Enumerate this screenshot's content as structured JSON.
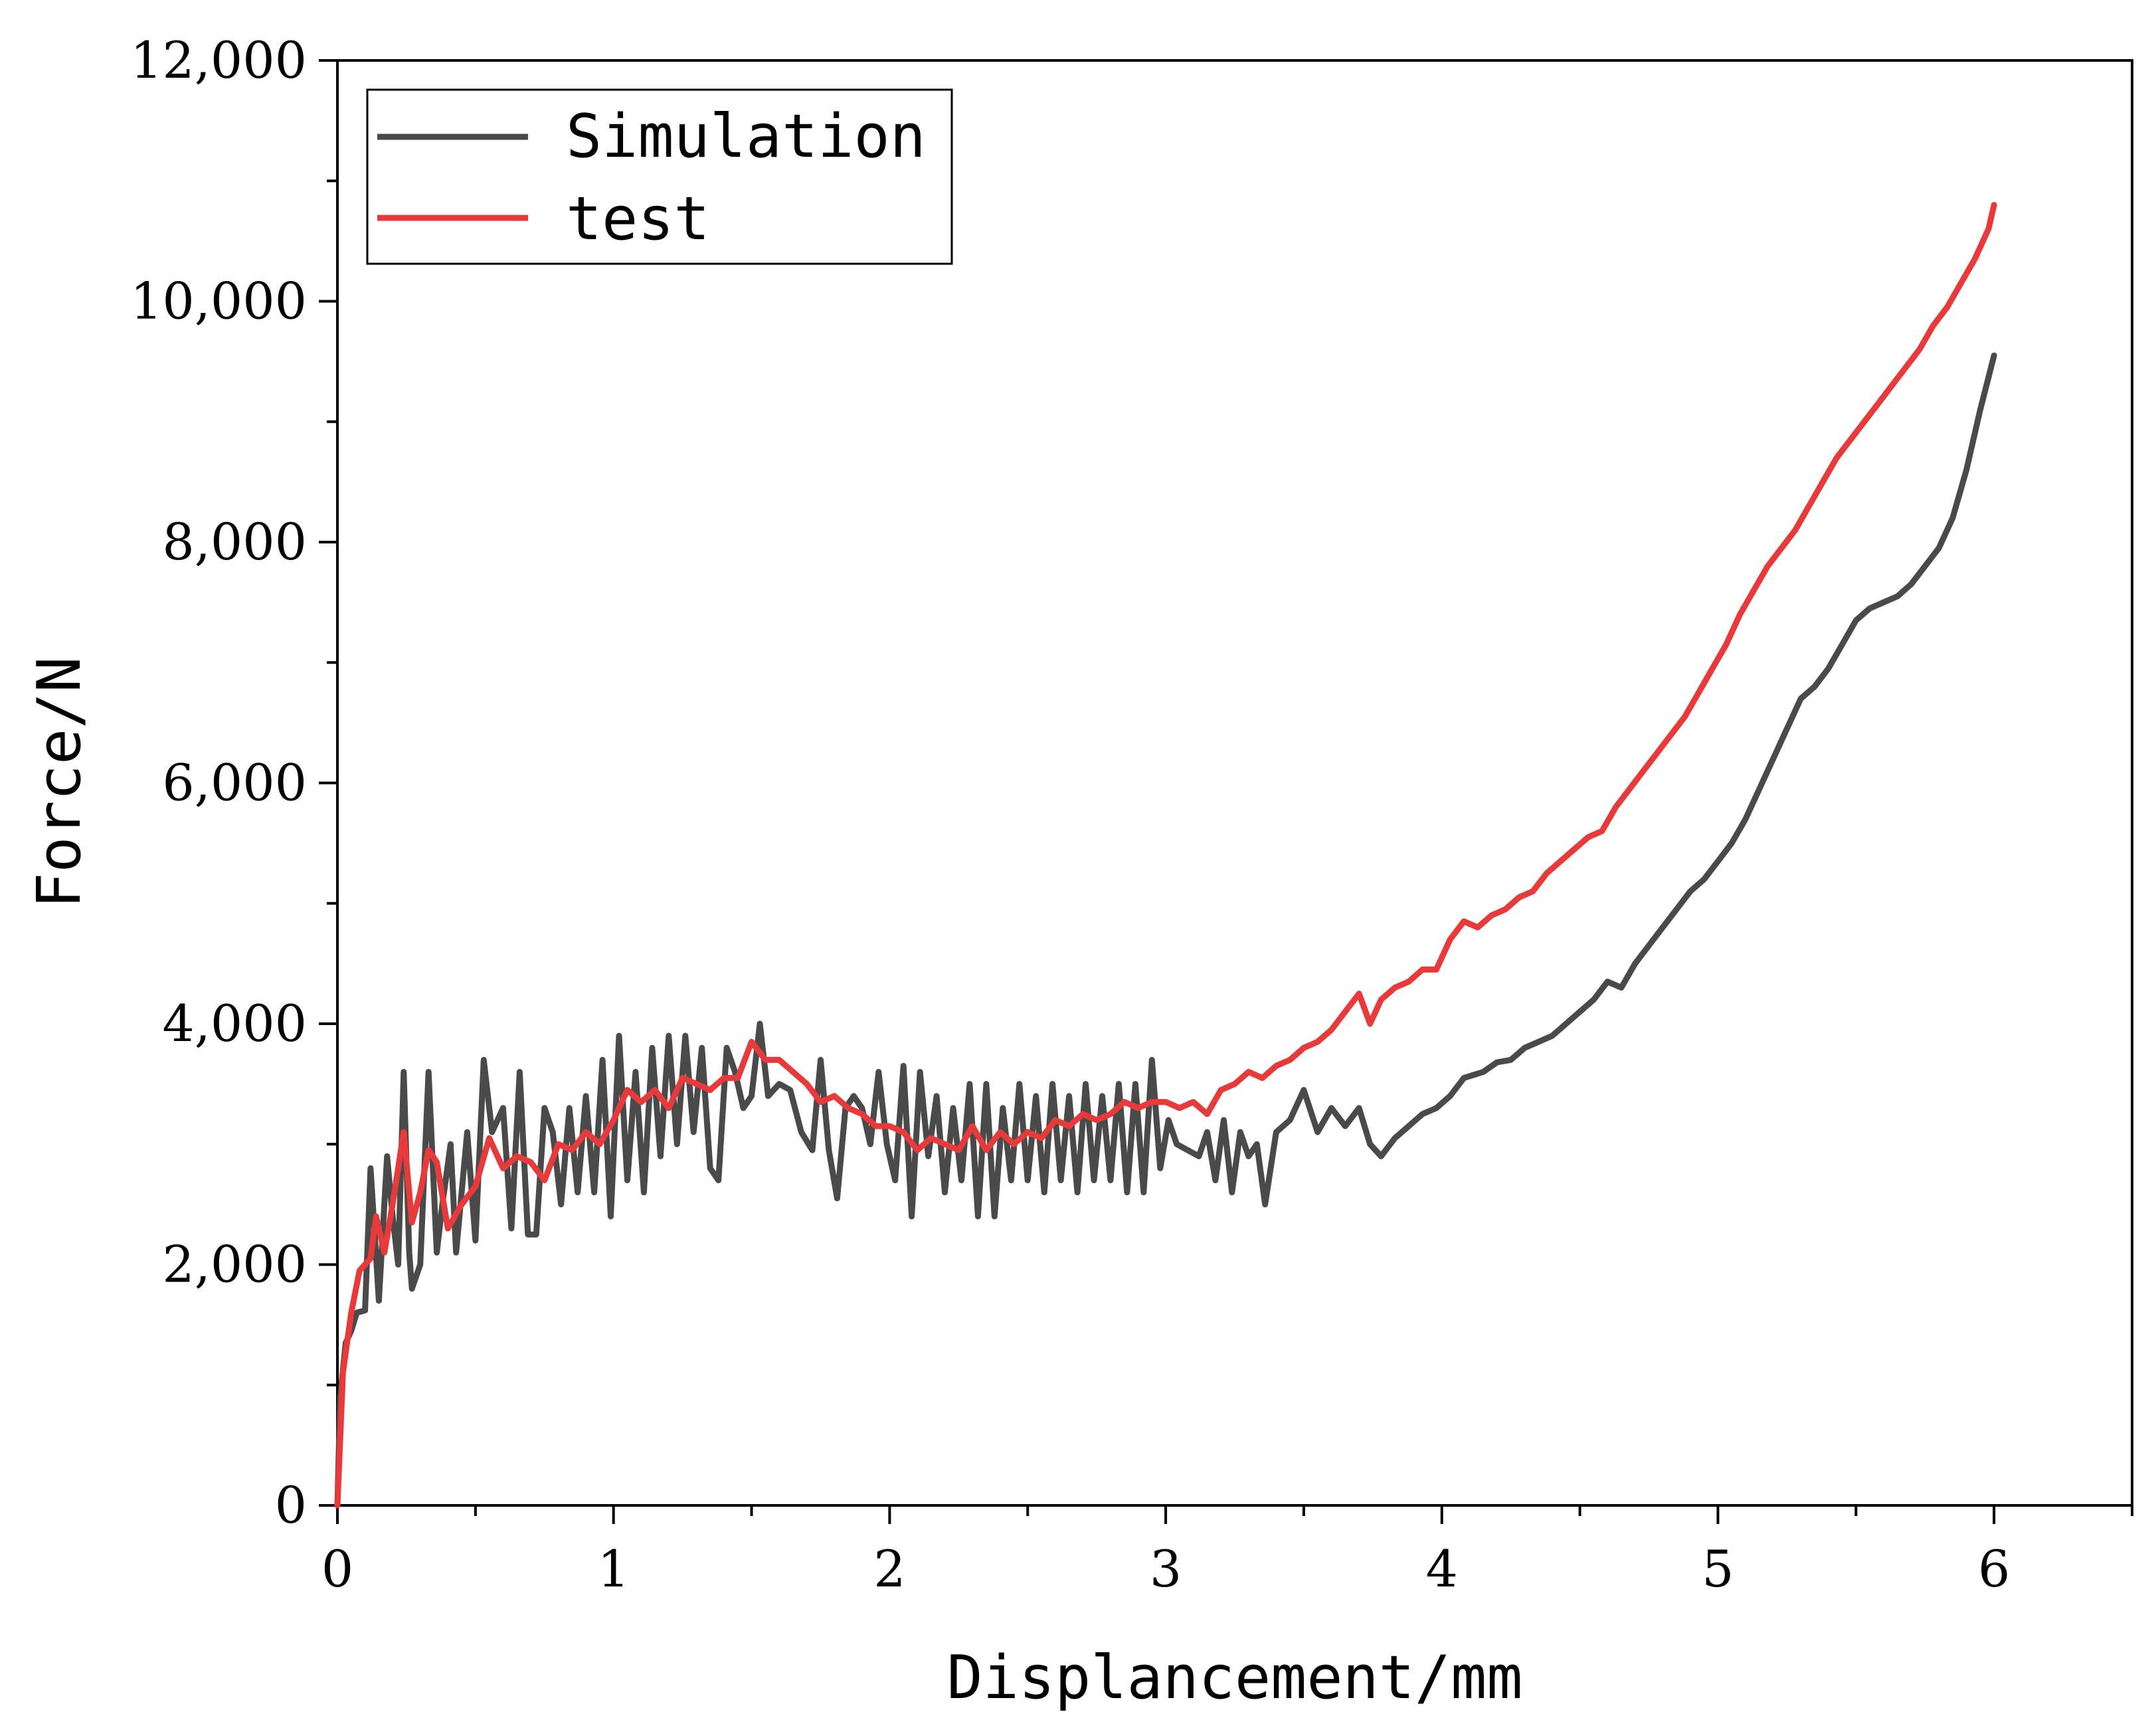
{
  "chart_data": {
    "type": "line",
    "title": "",
    "xlabel": "Displancement/mm",
    "ylabel": "Force/N",
    "xlim": [
      0,
      6.5
    ],
    "ylim": [
      0,
      12000
    ],
    "x_ticks": [
      0,
      1,
      2,
      3,
      4,
      5,
      6
    ],
    "x_tick_labels": [
      "0",
      "1",
      "2",
      "3",
      "4",
      "5",
      "6"
    ],
    "y_ticks": [
      0,
      2000,
      4000,
      6000,
      8000,
      10000,
      12000
    ],
    "y_tick_labels": [
      "0",
      "2,000",
      "4,000",
      "6,000",
      "8,000",
      "10,000",
      "12,000"
    ],
    "legend_position": "top-left",
    "series": [
      {
        "name": "Simulation",
        "color": "#4a4a4a",
        "points": [
          [
            0,
            0
          ],
          [
            0.01,
            900
          ],
          [
            0.03,
            1350
          ],
          [
            0.05,
            1450
          ],
          [
            0.07,
            1600
          ],
          [
            0.1,
            1620
          ],
          [
            0.12,
            2800
          ],
          [
            0.15,
            1700
          ],
          [
            0.18,
            2900
          ],
          [
            0.2,
            2400
          ],
          [
            0.22,
            2000
          ],
          [
            0.24,
            3600
          ],
          [
            0.26,
            2100
          ],
          [
            0.27,
            1800
          ],
          [
            0.3,
            2000
          ],
          [
            0.33,
            3600
          ],
          [
            0.36,
            2100
          ],
          [
            0.38,
            2500
          ],
          [
            0.41,
            3000
          ],
          [
            0.43,
            2100
          ],
          [
            0.47,
            3100
          ],
          [
            0.5,
            2200
          ],
          [
            0.53,
            3700
          ],
          [
            0.56,
            3100
          ],
          [
            0.6,
            3300
          ],
          [
            0.63,
            2300
          ],
          [
            0.66,
            3600
          ],
          [
            0.69,
            2250
          ],
          [
            0.72,
            2250
          ],
          [
            0.75,
            3300
          ],
          [
            0.78,
            3100
          ],
          [
            0.81,
            2500
          ],
          [
            0.84,
            3300
          ],
          [
            0.87,
            2600
          ],
          [
            0.9,
            3400
          ],
          [
            0.93,
            2600
          ],
          [
            0.96,
            3700
          ],
          [
            0.99,
            2400
          ],
          [
            1.02,
            3900
          ],
          [
            1.05,
            2700
          ],
          [
            1.08,
            3600
          ],
          [
            1.11,
            2600
          ],
          [
            1.14,
            3800
          ],
          [
            1.17,
            2900
          ],
          [
            1.2,
            3900
          ],
          [
            1.23,
            3000
          ],
          [
            1.26,
            3900
          ],
          [
            1.29,
            3100
          ],
          [
            1.32,
            3800
          ],
          [
            1.35,
            2800
          ],
          [
            1.38,
            2700
          ],
          [
            1.41,
            3800
          ],
          [
            1.44,
            3600
          ],
          [
            1.47,
            3300
          ],
          [
            1.5,
            3400
          ],
          [
            1.53,
            4000
          ],
          [
            1.56,
            3400
          ],
          [
            1.6,
            3500
          ],
          [
            1.64,
            3450
          ],
          [
            1.68,
            3100
          ],
          [
            1.72,
            2950
          ],
          [
            1.75,
            3700
          ],
          [
            1.78,
            2950
          ],
          [
            1.81,
            2550
          ],
          [
            1.84,
            3300
          ],
          [
            1.87,
            3400
          ],
          [
            1.9,
            3300
          ],
          [
            1.93,
            3000
          ],
          [
            1.96,
            3600
          ],
          [
            1.99,
            3000
          ],
          [
            2.02,
            2700
          ],
          [
            2.05,
            3650
          ],
          [
            2.08,
            2400
          ],
          [
            2.11,
            3600
          ],
          [
            2.14,
            2900
          ],
          [
            2.17,
            3400
          ],
          [
            2.2,
            2600
          ],
          [
            2.23,
            3300
          ],
          [
            2.26,
            2700
          ],
          [
            2.29,
            3500
          ],
          [
            2.32,
            2400
          ],
          [
            2.35,
            3500
          ],
          [
            2.38,
            2400
          ],
          [
            2.41,
            3300
          ],
          [
            2.44,
            2700
          ],
          [
            2.47,
            3500
          ],
          [
            2.5,
            2700
          ],
          [
            2.53,
            3400
          ],
          [
            2.56,
            2600
          ],
          [
            2.59,
            3500
          ],
          [
            2.62,
            2700
          ],
          [
            2.65,
            3400
          ],
          [
            2.68,
            2600
          ],
          [
            2.71,
            3500
          ],
          [
            2.74,
            2700
          ],
          [
            2.77,
            3400
          ],
          [
            2.8,
            2700
          ],
          [
            2.83,
            3500
          ],
          [
            2.86,
            2600
          ],
          [
            2.89,
            3500
          ],
          [
            2.92,
            2600
          ],
          [
            2.95,
            3700
          ],
          [
            2.98,
            2800
          ],
          [
            3.01,
            3200
          ],
          [
            3.04,
            3000
          ],
          [
            3.08,
            2950
          ],
          [
            3.12,
            2900
          ],
          [
            3.15,
            3100
          ],
          [
            3.18,
            2700
          ],
          [
            3.21,
            3200
          ],
          [
            3.24,
            2600
          ],
          [
            3.27,
            3100
          ],
          [
            3.3,
            2900
          ],
          [
            3.33,
            3000
          ],
          [
            3.36,
            2500
          ],
          [
            3.4,
            3100
          ],
          [
            3.45,
            3200
          ],
          [
            3.5,
            3450
          ],
          [
            3.55,
            3100
          ],
          [
            3.6,
            3300
          ],
          [
            3.65,
            3150
          ],
          [
            3.7,
            3300
          ],
          [
            3.74,
            3000
          ],
          [
            3.78,
            2900
          ],
          [
            3.83,
            3050
          ],
          [
            3.88,
            3150
          ],
          [
            3.93,
            3250
          ],
          [
            3.98,
            3300
          ],
          [
            4.03,
            3400
          ],
          [
            4.08,
            3550
          ],
          [
            4.15,
            3600
          ],
          [
            4.2,
            3680
          ],
          [
            4.25,
            3700
          ],
          [
            4.3,
            3800
          ],
          [
            4.35,
            3850
          ],
          [
            4.4,
            3900
          ],
          [
            4.45,
            4000
          ],
          [
            4.5,
            4100
          ],
          [
            4.55,
            4200
          ],
          [
            4.6,
            4350
          ],
          [
            4.65,
            4300
          ],
          [
            4.7,
            4500
          ],
          [
            4.75,
            4650
          ],
          [
            4.8,
            4800
          ],
          [
            4.85,
            4950
          ],
          [
            4.9,
            5100
          ],
          [
            4.95,
            5200
          ],
          [
            5.0,
            5350
          ],
          [
            5.05,
            5500
          ],
          [
            5.1,
            5700
          ],
          [
            5.15,
            5950
          ],
          [
            5.2,
            6200
          ],
          [
            5.25,
            6450
          ],
          [
            5.3,
            6700
          ],
          [
            5.35,
            6800
          ],
          [
            5.4,
            6950
          ],
          [
            5.45,
            7150
          ],
          [
            5.5,
            7350
          ],
          [
            5.55,
            7450
          ],
          [
            5.6,
            7500
          ],
          [
            5.65,
            7550
          ],
          [
            5.7,
            7650
          ],
          [
            5.75,
            7800
          ],
          [
            5.8,
            7950
          ],
          [
            5.85,
            8200
          ],
          [
            5.9,
            8600
          ],
          [
            5.95,
            9100
          ],
          [
            6.0,
            9550
          ]
        ]
      },
      {
        "name": "test",
        "color": "#e83a3a",
        "points": [
          [
            0,
            0
          ],
          [
            0.02,
            1100
          ],
          [
            0.05,
            1600
          ],
          [
            0.08,
            1950
          ],
          [
            0.12,
            2050
          ],
          [
            0.14,
            2400
          ],
          [
            0.17,
            2100
          ],
          [
            0.2,
            2500
          ],
          [
            0.24,
            3100
          ],
          [
            0.27,
            2350
          ],
          [
            0.3,
            2600
          ],
          [
            0.33,
            2950
          ],
          [
            0.36,
            2850
          ],
          [
            0.4,
            2300
          ],
          [
            0.45,
            2500
          ],
          [
            0.5,
            2650
          ],
          [
            0.55,
            3050
          ],
          [
            0.6,
            2800
          ],
          [
            0.65,
            2900
          ],
          [
            0.7,
            2850
          ],
          [
            0.75,
            2700
          ],
          [
            0.8,
            3000
          ],
          [
            0.85,
            2950
          ],
          [
            0.9,
            3100
          ],
          [
            0.95,
            3000
          ],
          [
            1.0,
            3200
          ],
          [
            1.05,
            3450
          ],
          [
            1.1,
            3350
          ],
          [
            1.15,
            3450
          ],
          [
            1.2,
            3300
          ],
          [
            1.25,
            3550
          ],
          [
            1.3,
            3500
          ],
          [
            1.35,
            3450
          ],
          [
            1.4,
            3550
          ],
          [
            1.45,
            3550
          ],
          [
            1.5,
            3850
          ],
          [
            1.55,
            3700
          ],
          [
            1.6,
            3700
          ],
          [
            1.65,
            3600
          ],
          [
            1.7,
            3500
          ],
          [
            1.75,
            3350
          ],
          [
            1.8,
            3400
          ],
          [
            1.85,
            3300
          ],
          [
            1.9,
            3250
          ],
          [
            1.95,
            3150
          ],
          [
            2.0,
            3150
          ],
          [
            2.05,
            3100
          ],
          [
            2.1,
            2950
          ],
          [
            2.15,
            3050
          ],
          [
            2.2,
            3000
          ],
          [
            2.25,
            2950
          ],
          [
            2.3,
            3150
          ],
          [
            2.35,
            2950
          ],
          [
            2.4,
            3100
          ],
          [
            2.45,
            3000
          ],
          [
            2.5,
            3100
          ],
          [
            2.55,
            3050
          ],
          [
            2.6,
            3200
          ],
          [
            2.65,
            3150
          ],
          [
            2.7,
            3250
          ],
          [
            2.75,
            3200
          ],
          [
            2.8,
            3250
          ],
          [
            2.85,
            3350
          ],
          [
            2.9,
            3300
          ],
          [
            2.95,
            3350
          ],
          [
            3.0,
            3350
          ],
          [
            3.05,
            3300
          ],
          [
            3.1,
            3350
          ],
          [
            3.15,
            3250
          ],
          [
            3.2,
            3450
          ],
          [
            3.25,
            3500
          ],
          [
            3.3,
            3600
          ],
          [
            3.35,
            3550
          ],
          [
            3.4,
            3650
          ],
          [
            3.45,
            3700
          ],
          [
            3.5,
            3800
          ],
          [
            3.55,
            3850
          ],
          [
            3.6,
            3950
          ],
          [
            3.65,
            4100
          ],
          [
            3.7,
            4250
          ],
          [
            3.74,
            4000
          ],
          [
            3.78,
            4200
          ],
          [
            3.83,
            4300
          ],
          [
            3.88,
            4350
          ],
          [
            3.93,
            4450
          ],
          [
            3.98,
            4450
          ],
          [
            4.03,
            4700
          ],
          [
            4.08,
            4850
          ],
          [
            4.13,
            4800
          ],
          [
            4.18,
            4900
          ],
          [
            4.23,
            4950
          ],
          [
            4.28,
            5050
          ],
          [
            4.33,
            5100
          ],
          [
            4.38,
            5250
          ],
          [
            4.43,
            5350
          ],
          [
            4.48,
            5450
          ],
          [
            4.53,
            5550
          ],
          [
            4.58,
            5600
          ],
          [
            4.63,
            5800
          ],
          [
            4.68,
            5950
          ],
          [
            4.73,
            6100
          ],
          [
            4.78,
            6250
          ],
          [
            4.83,
            6400
          ],
          [
            4.88,
            6550
          ],
          [
            4.93,
            6750
          ],
          [
            4.98,
            6950
          ],
          [
            5.03,
            7150
          ],
          [
            5.08,
            7400
          ],
          [
            5.13,
            7600
          ],
          [
            5.18,
            7800
          ],
          [
            5.23,
            7950
          ],
          [
            5.28,
            8100
          ],
          [
            5.33,
            8300
          ],
          [
            5.38,
            8500
          ],
          [
            5.43,
            8700
          ],
          [
            5.48,
            8850
          ],
          [
            5.53,
            9000
          ],
          [
            5.58,
            9150
          ],
          [
            5.63,
            9300
          ],
          [
            5.68,
            9450
          ],
          [
            5.73,
            9600
          ],
          [
            5.78,
            9800
          ],
          [
            5.83,
            9950
          ],
          [
            5.88,
            10150
          ],
          [
            5.93,
            10350
          ],
          [
            5.98,
            10600
          ],
          [
            6.0,
            10800
          ]
        ]
      }
    ]
  }
}
